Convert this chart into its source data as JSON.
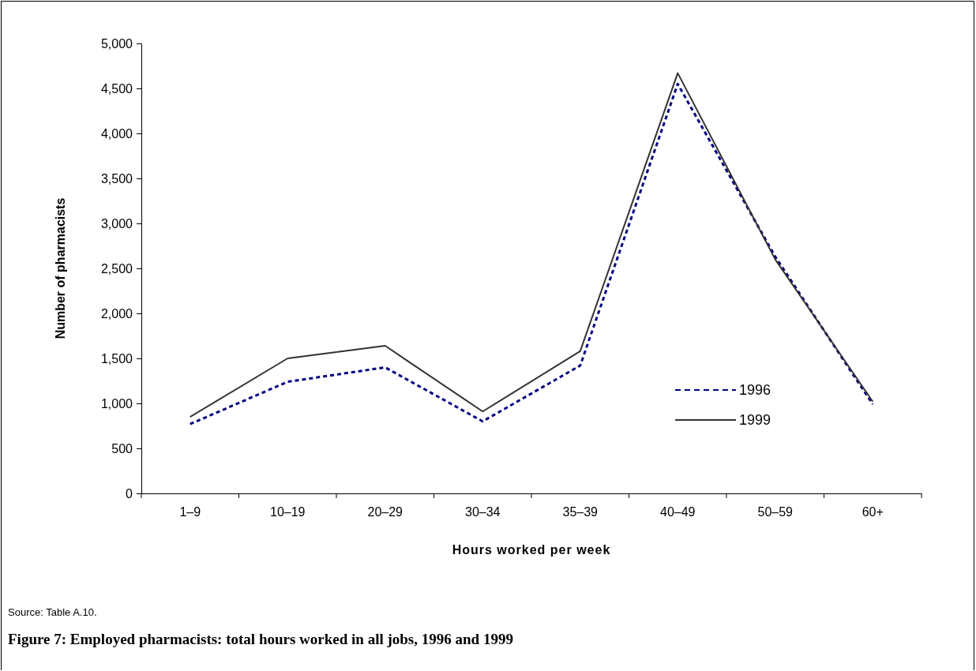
{
  "chart_data": {
    "type": "line",
    "title": "Figure 7: Employed pharmacists: total hours worked in all jobs, 1996 and 1999",
    "xlabel": "Hours worked per week",
    "ylabel": "Number of pharmacists",
    "categories": [
      "1–9",
      "10–19",
      "20–29",
      "30–34",
      "35–39",
      "40–49",
      "50–59",
      "60+"
    ],
    "series": [
      {
        "name": "1996",
        "color": "#000080",
        "line_style": "dotted",
        "values": [
          770,
          1240,
          1400,
          800,
          1420,
          4550,
          2630,
          990
        ]
      },
      {
        "name": "1999",
        "color": "#333333",
        "line_style": "solid",
        "values": [
          850,
          1500,
          1640,
          910,
          1580,
          4670,
          2600,
          1020
        ]
      }
    ],
    "ylim": [
      0,
      5000
    ],
    "yticks": [
      {
        "value": 0,
        "label": "0"
      },
      {
        "value": 500,
        "label": "500"
      },
      {
        "value": 1000,
        "label": "1,000"
      },
      {
        "value": 1500,
        "label": "1,500"
      },
      {
        "value": 2000,
        "label": "2,000"
      },
      {
        "value": 2500,
        "label": "2,500"
      },
      {
        "value": 3000,
        "label": "3,000"
      },
      {
        "value": 3500,
        "label": "3,500"
      },
      {
        "value": 4000,
        "label": "4,000"
      },
      {
        "value": 4500,
        "label": "4,500"
      },
      {
        "value": 5000,
        "label": "5,000"
      }
    ],
    "legend": "right",
    "grid": false,
    "marker": "none",
    "annotations": [
      "Source: Table A.10."
    ]
  }
}
